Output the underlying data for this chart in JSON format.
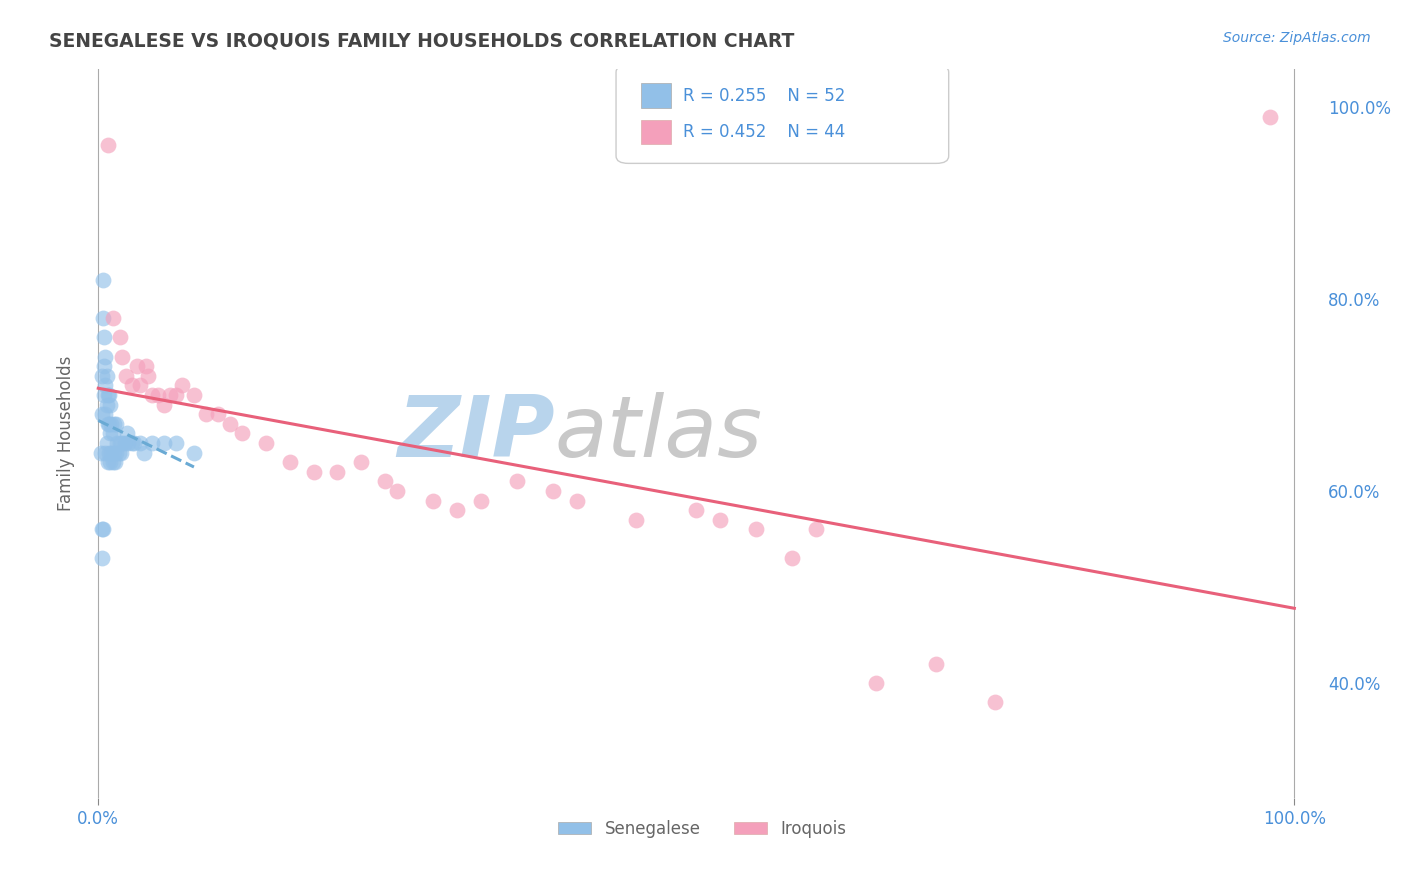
{
  "title": "SENEGALESE VS IROQUOIS FAMILY HOUSEHOLDS CORRELATION CHART",
  "source_text": "Source: ZipAtlas.com",
  "ylabel": "Family Households",
  "blue_color": "#92c0e8",
  "pink_color": "#f4a0bb",
  "blue_line_color": "#6aaad4",
  "pink_line_color": "#e8607a",
  "watermark_zip": "ZIP",
  "watermark_atlas": "atlas",
  "watermark_zip_color": "#b8d4ec",
  "watermark_atlas_color": "#c8c8c8",
  "background_color": "#ffffff",
  "grid_color": "#cccccc",
  "title_color": "#444444",
  "axis_label_color": "#666666",
  "tick_color": "#4a90d9",
  "legend_text_color": "#4a90d9",
  "blue_x": [
    0.002,
    0.003,
    0.003,
    0.004,
    0.004,
    0.005,
    0.005,
    0.005,
    0.006,
    0.006,
    0.006,
    0.006,
    0.007,
    0.007,
    0.007,
    0.008,
    0.008,
    0.008,
    0.009,
    0.009,
    0.009,
    0.01,
    0.01,
    0.01,
    0.011,
    0.011,
    0.012,
    0.012,
    0.013,
    0.013,
    0.014,
    0.015,
    0.015,
    0.016,
    0.017,
    0.018,
    0.019,
    0.02,
    0.022,
    0.024,
    0.025,
    0.028,
    0.03,
    0.035,
    0.038,
    0.045,
    0.055,
    0.065,
    0.08,
    0.003,
    0.003,
    0.004
  ],
  "blue_y": [
    0.64,
    0.68,
    0.72,
    0.78,
    0.82,
    0.7,
    0.73,
    0.76,
    0.64,
    0.68,
    0.71,
    0.74,
    0.65,
    0.69,
    0.72,
    0.63,
    0.67,
    0.7,
    0.64,
    0.67,
    0.7,
    0.63,
    0.66,
    0.69,
    0.64,
    0.67,
    0.63,
    0.66,
    0.64,
    0.67,
    0.63,
    0.64,
    0.67,
    0.65,
    0.64,
    0.65,
    0.64,
    0.65,
    0.65,
    0.66,
    0.65,
    0.65,
    0.65,
    0.65,
    0.64,
    0.65,
    0.65,
    0.65,
    0.64,
    0.56,
    0.53,
    0.56
  ],
  "pink_x": [
    0.008,
    0.012,
    0.018,
    0.02,
    0.023,
    0.028,
    0.032,
    0.035,
    0.04,
    0.042,
    0.045,
    0.05,
    0.055,
    0.06,
    0.065,
    0.07,
    0.08,
    0.09,
    0.1,
    0.11,
    0.12,
    0.14,
    0.16,
    0.18,
    0.2,
    0.22,
    0.24,
    0.25,
    0.28,
    0.3,
    0.32,
    0.35,
    0.38,
    0.4,
    0.45,
    0.5,
    0.52,
    0.55,
    0.58,
    0.6,
    0.65,
    0.7,
    0.75,
    0.98
  ],
  "pink_y": [
    0.96,
    0.78,
    0.76,
    0.74,
    0.72,
    0.71,
    0.73,
    0.71,
    0.73,
    0.72,
    0.7,
    0.7,
    0.69,
    0.7,
    0.7,
    0.71,
    0.7,
    0.68,
    0.68,
    0.67,
    0.66,
    0.65,
    0.63,
    0.62,
    0.62,
    0.63,
    0.61,
    0.6,
    0.59,
    0.58,
    0.59,
    0.61,
    0.6,
    0.59,
    0.57,
    0.58,
    0.57,
    0.56,
    0.53,
    0.56,
    0.4,
    0.42,
    0.38,
    0.99
  ]
}
